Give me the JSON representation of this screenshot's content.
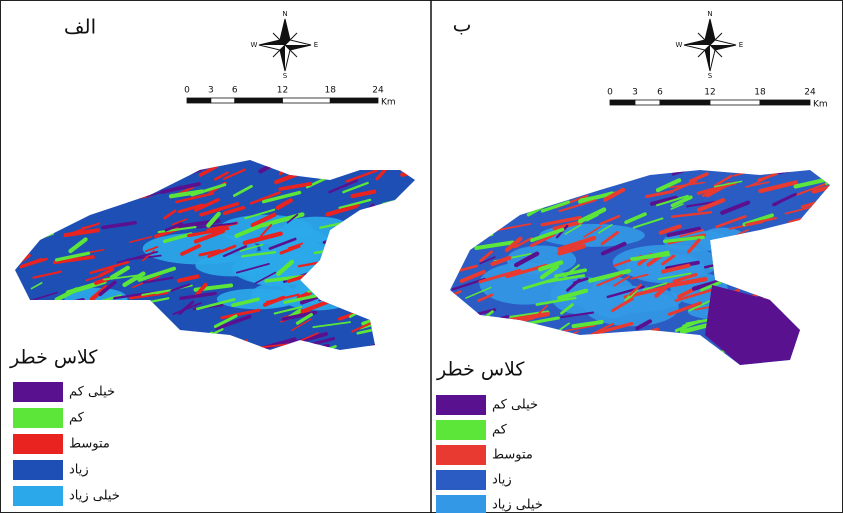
{
  "panels": [
    {
      "label": "الف",
      "compass": {
        "n": "N",
        "s": "S",
        "e": "E",
        "w": "W"
      },
      "scale": {
        "ticks": [
          "0",
          "3",
          "6",
          "12",
          "18",
          "24"
        ],
        "unit": "Km"
      },
      "legend": {
        "title": "کلاس خطر",
        "items": [
          {
            "label": "خیلی کم",
            "color": "#5a1190"
          },
          {
            "label": "کم",
            "color": "#5ce63a"
          },
          {
            "label": "متوسط",
            "color": "#e82320"
          },
          {
            "label": "زیاد",
            "color": "#1e4fb5"
          },
          {
            "label": "خیلی زیاد",
            "color": "#2ba8ea"
          }
        ]
      }
    },
    {
      "label": "ب",
      "compass": {
        "n": "N",
        "s": "S",
        "e": "E",
        "w": "W"
      },
      "scale": {
        "ticks": [
          "0",
          "3",
          "6",
          "12",
          "18",
          "24"
        ],
        "unit": "Km"
      },
      "legend": {
        "title": "کلاس خطر",
        "items": [
          {
            "label": "خیلی کم",
            "color": "#5a1190"
          },
          {
            "label": "کم",
            "color": "#5ce63a"
          },
          {
            "label": "متوسط",
            "color": "#e83a30"
          },
          {
            "label": "زیاد",
            "color": "#2a5cc4"
          },
          {
            "label": "خیلی زیاد",
            "color": "#3399e6"
          }
        ]
      }
    }
  ]
}
